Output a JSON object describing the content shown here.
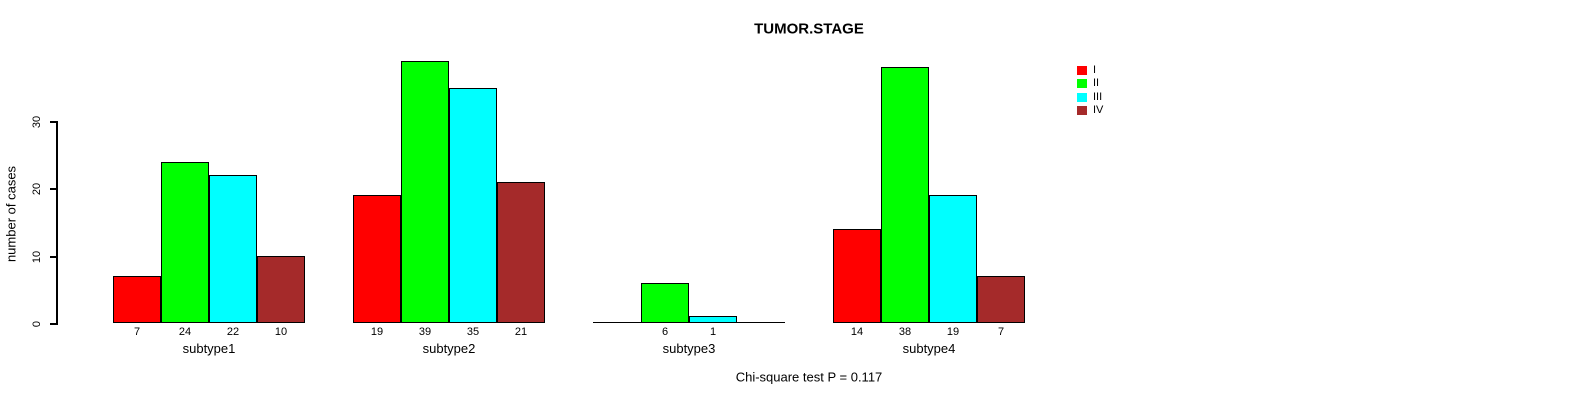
{
  "chart": {
    "title": "TUMOR.STAGE",
    "caption": "Chi-square test P = 0.117",
    "y_axis": {
      "label": "number of cases",
      "tick_labels": [
        "0",
        "10",
        "20",
        "30"
      ]
    },
    "legend": {
      "items": [
        {
          "label": "I",
          "color": "#FF0000"
        },
        {
          "label": "II",
          "color": "#00FF00"
        },
        {
          "label": "III",
          "color": "#00FFFF"
        },
        {
          "label": "IV",
          "color": "#A52A2A"
        }
      ]
    }
  },
  "chart_data": {
    "type": "bar",
    "title": "TUMOR.STAGE",
    "xlabel": "",
    "ylabel": "number of cases",
    "categories": [
      "subtype1",
      "subtype2",
      "subtype3",
      "subtype4"
    ],
    "series": [
      {
        "name": "I",
        "color": "#FF0000",
        "values": [
          7,
          19,
          0,
          14
        ]
      },
      {
        "name": "II",
        "color": "#00FF00",
        "values": [
          24,
          39,
          6,
          38
        ]
      },
      {
        "name": "III",
        "color": "#00FFFF",
        "values": [
          22,
          35,
          1,
          19
        ]
      },
      {
        "name": "IV",
        "color": "#A52A2A",
        "values": [
          10,
          21,
          0,
          7
        ]
      }
    ],
    "value_labels": [
      [
        "7",
        "24",
        "22",
        "10"
      ],
      [
        "19",
        "39",
        "35",
        "21"
      ],
      [
        "",
        "6",
        "1",
        ""
      ],
      [
        "14",
        "38",
        "19",
        "7"
      ]
    ],
    "yticks": [
      0,
      10,
      20,
      30
    ],
    "ylim": [
      0,
      40
    ],
    "grid": false,
    "legend_position": "top-right",
    "annotation": "Chi-square test P = 0.117"
  }
}
